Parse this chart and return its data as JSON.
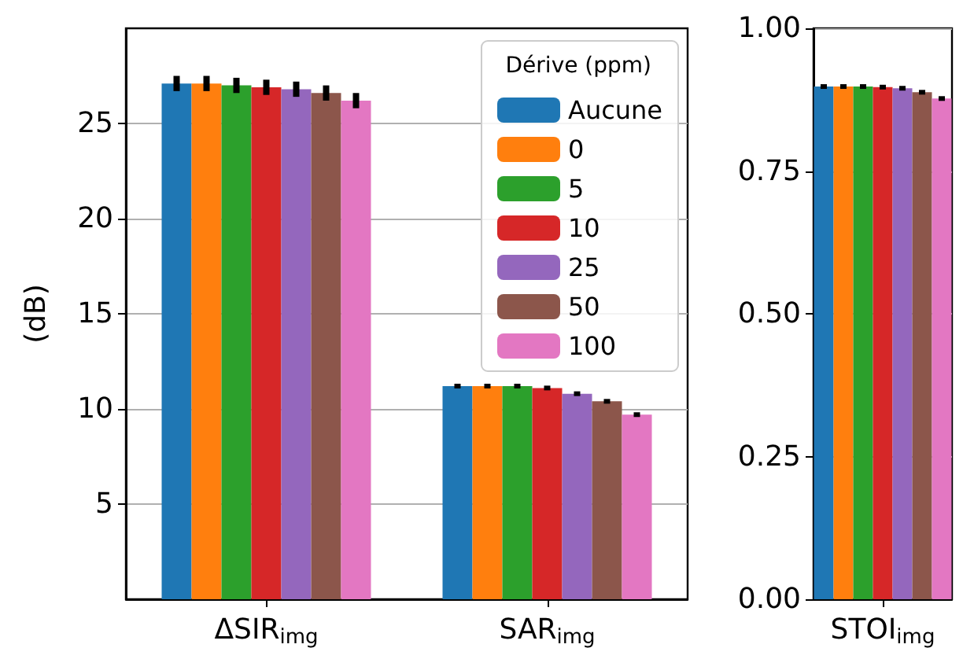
{
  "chart_data": [
    {
      "type": "bar",
      "ylabel": "(dB)",
      "categories": [
        "ΔSIR$_{img}$",
        "SAR$_{img}$"
      ],
      "ylim": [
        0,
        30
      ],
      "yticks": [
        5,
        10,
        15,
        20,
        25
      ],
      "grid": "y",
      "legend": "top right",
      "legend_title": "Dérive (ppm)",
      "series": [
        {
          "name": "Aucune",
          "color": "#1f77b4",
          "values": [
            27.1,
            11.2
          ],
          "errors": [
            0.4,
            0.1
          ]
        },
        {
          "name": "0",
          "color": "#ff7f0e",
          "values": [
            27.1,
            11.2
          ],
          "errors": [
            0.4,
            0.1
          ]
        },
        {
          "name": "5",
          "color": "#2ca02c",
          "values": [
            27.0,
            11.2
          ],
          "errors": [
            0.4,
            0.1
          ]
        },
        {
          "name": "10",
          "color": "#d62728",
          "values": [
            26.9,
            11.1
          ],
          "errors": [
            0.4,
            0.1
          ]
        },
        {
          "name": "25",
          "color": "#9467bd",
          "values": [
            26.8,
            10.8
          ],
          "errors": [
            0.4,
            0.1
          ]
        },
        {
          "name": "50",
          "color": "#8c564b",
          "values": [
            26.6,
            10.4
          ],
          "errors": [
            0.4,
            0.1
          ]
        },
        {
          "name": "100",
          "color": "#e377c2",
          "values": [
            26.2,
            9.7
          ],
          "errors": [
            0.4,
            0.1
          ]
        }
      ]
    },
    {
      "type": "bar",
      "categories": [
        "STOI$_{img}$"
      ],
      "ylim": [
        0,
        1
      ],
      "yticks": [
        {
          "value": 0,
          "label": "0.00"
        },
        {
          "value": 0.25,
          "label": "0.25"
        },
        {
          "value": 0.5,
          "label": "0.50"
        },
        {
          "value": 0.75,
          "label": "0.75"
        },
        {
          "value": 1,
          "label": "1.00"
        }
      ],
      "grid": "y",
      "series": [
        {
          "color": "#1f77b4",
          "values": [
            0.898
          ],
          "errors": [
            0.003
          ]
        },
        {
          "color": "#ff7f0e",
          "values": [
            0.898
          ],
          "errors": [
            0.003
          ]
        },
        {
          "color": "#2ca02c",
          "values": [
            0.898
          ],
          "errors": [
            0.003
          ]
        },
        {
          "color": "#d62728",
          "values": [
            0.897
          ],
          "errors": [
            0.003
          ]
        },
        {
          "color": "#9467bd",
          "values": [
            0.895
          ],
          "errors": [
            0.003
          ]
        },
        {
          "color": "#8c564b",
          "values": [
            0.888
          ],
          "errors": [
            0.003
          ]
        },
        {
          "color": "#e377c2",
          "values": [
            0.877
          ],
          "errors": [
            0.003
          ]
        }
      ]
    }
  ]
}
